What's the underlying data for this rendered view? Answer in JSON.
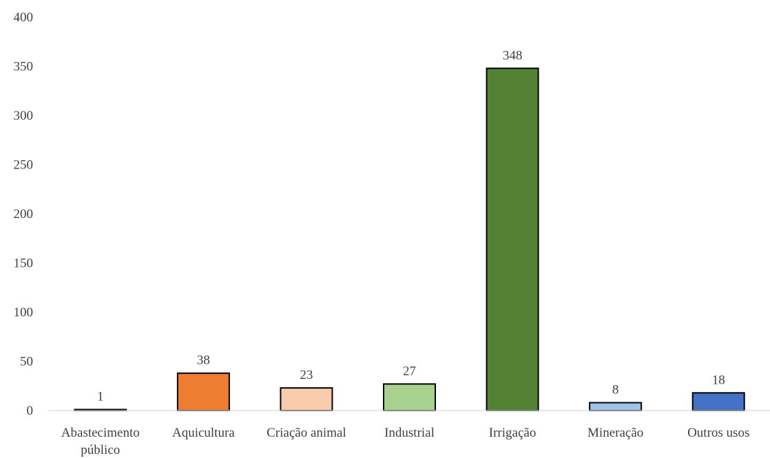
{
  "chart_data": {
    "type": "bar",
    "categories": [
      "Abastecimento público",
      "Aquicultura",
      "Criação animal",
      "Industrial",
      "Irrigação",
      "Mineração",
      "Outros usos"
    ],
    "category_lines": [
      [
        "Abastecimento",
        "público"
      ],
      [
        "Aquicultura"
      ],
      [
        "Criação animal"
      ],
      [
        "Industrial"
      ],
      [
        "Irrigação"
      ],
      [
        "Mineração"
      ],
      [
        "Outros usos"
      ]
    ],
    "values": [
      1,
      38,
      23,
      27,
      348,
      8,
      18
    ],
    "data_labels": [
      "1",
      "38",
      "23",
      "27",
      "348",
      "8",
      "18"
    ],
    "colors": [
      "#7f7f7f",
      "#ed7d31",
      "#f8cbad",
      "#a9d18e",
      "#548235",
      "#9dc3e6",
      "#4472c4"
    ],
    "ylim": [
      0,
      400
    ],
    "yticks": [
      0,
      50,
      100,
      150,
      200,
      250,
      300,
      350,
      400
    ],
    "grid": false,
    "legend": "none",
    "title": "",
    "xlabel": "",
    "ylabel": ""
  }
}
